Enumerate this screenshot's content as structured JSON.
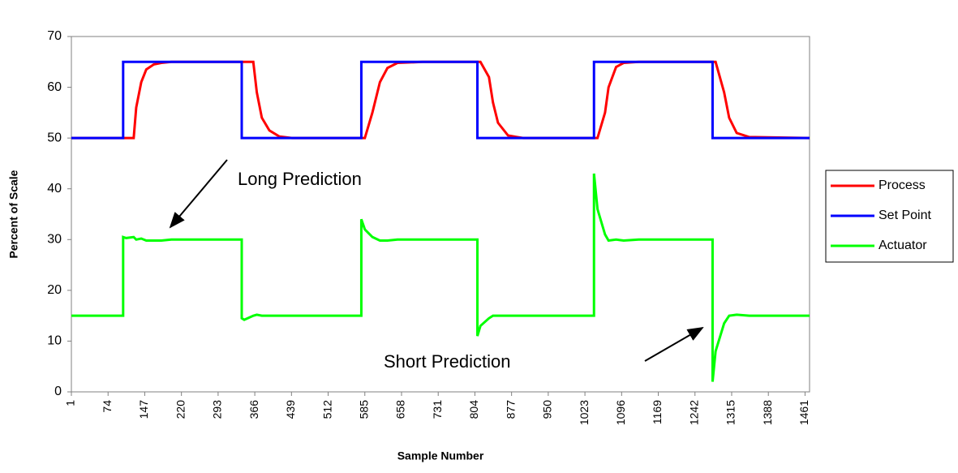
{
  "chart_data": {
    "type": "line",
    "ylabel": "Percent of Scale",
    "xlabel": "Sample Number",
    "xlim": [
      1,
      1470
    ],
    "ylim": [
      0,
      70
    ],
    "yticks": [
      0,
      10,
      20,
      30,
      40,
      50,
      60,
      70
    ],
    "xticks": [
      1,
      74,
      147,
      220,
      293,
      366,
      439,
      512,
      585,
      658,
      731,
      804,
      877,
      950,
      1023,
      1096,
      1169,
      1242,
      1315,
      1388,
      1461
    ],
    "legend": "right",
    "annotations": [
      {
        "text": "Long Prediction"
      },
      {
        "text": "Short Prediction"
      }
    ],
    "x": [
      1,
      104,
      104,
      110,
      125,
      130,
      140,
      150,
      165,
      180,
      200,
      220,
      340,
      340,
      345,
      363,
      370,
      380,
      395,
      415,
      440,
      578,
      578,
      585,
      600,
      615,
      630,
      650,
      700,
      809,
      809,
      815,
      832,
      840,
      850,
      870,
      900,
      1041,
      1041,
      1048,
      1063,
      1070,
      1085,
      1100,
      1130,
      1277,
      1277,
      1283,
      1300,
      1310,
      1325,
      1350,
      1470
    ],
    "series": [
      {
        "name": "Process",
        "color": "#ff0000",
        "values": [
          50,
          50,
          50,
          50,
          50,
          56,
          61,
          63.5,
          64.5,
          64.8,
          65,
          65,
          65,
          65,
          65,
          65,
          59,
          54,
          51.5,
          50.3,
          50,
          50,
          50,
          50,
          55,
          61,
          63.8,
          64.8,
          65,
          65,
          65,
          65,
          62,
          57,
          53,
          50.5,
          50,
          50,
          50,
          50,
          55,
          60,
          64,
          64.8,
          65,
          65,
          65,
          65,
          59,
          54,
          51,
          50.2,
          50
        ]
      },
      {
        "name": "Set Point",
        "color": "#0000ff",
        "values": [
          50,
          50,
          65,
          65,
          65,
          65,
          65,
          65,
          65,
          65,
          65,
          65,
          65,
          50,
          50,
          50,
          50,
          50,
          50,
          50,
          50,
          50,
          65,
          65,
          65,
          65,
          65,
          65,
          65,
          65,
          50,
          50,
          50,
          50,
          50,
          50,
          50,
          50,
          65,
          65,
          65,
          65,
          65,
          65,
          65,
          65,
          50,
          50,
          50,
          50,
          50,
          50,
          50
        ]
      },
      {
        "name": "Actuator",
        "color": "#00ff00",
        "values": [
          15,
          15,
          30.5,
          30.3,
          30.5,
          30,
          30.2,
          29.8,
          29.8,
          29.8,
          30,
          30,
          30,
          14.5,
          14.2,
          15,
          15.2,
          15,
          15,
          15,
          15,
          15,
          34,
          32,
          30.5,
          29.8,
          29.8,
          30,
          30,
          30,
          11,
          13,
          14.5,
          15,
          15,
          15,
          15,
          15,
          43,
          36,
          31,
          29.8,
          30,
          29.8,
          30,
          30,
          2,
          8,
          13.5,
          15,
          15.2,
          15,
          15
        ]
      }
    ]
  }
}
